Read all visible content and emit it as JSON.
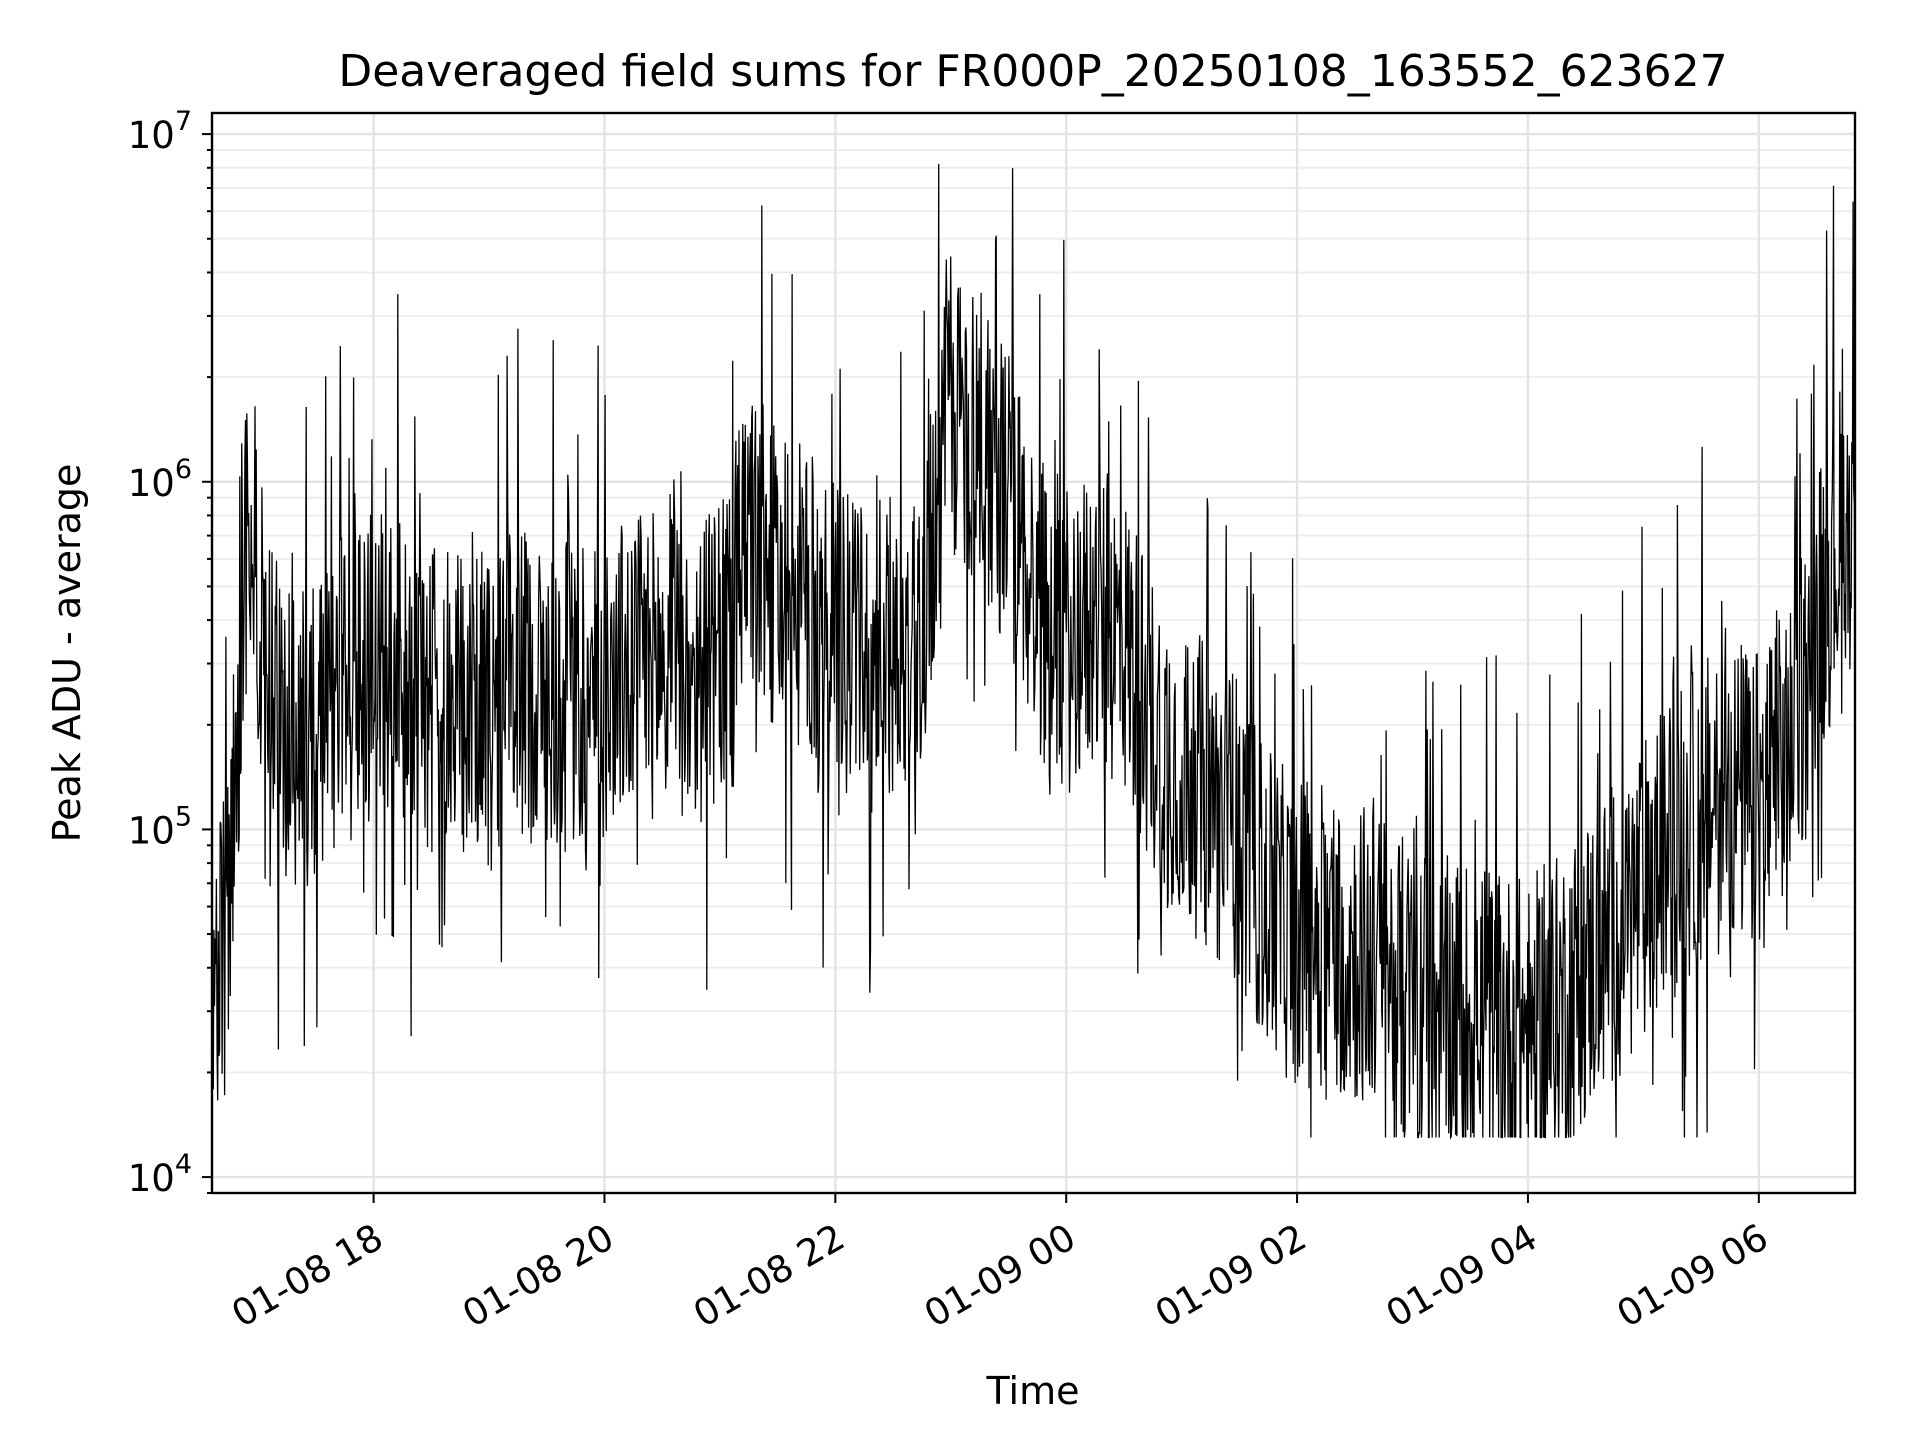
{
  "chart_data": {
    "type": "line",
    "title": "Deaveraged field sums for FR000P_20250108_163552_623627",
    "xlabel": "Time",
    "ylabel": "Peak ADU - average",
    "xlim": [
      "2025-01-08 16:36",
      "2025-01-09 06:50"
    ],
    "ylim": [
      9000,
      11500000
    ],
    "yscale": "log",
    "grid": true,
    "x_ticks": [
      "01-08 18",
      "01-08 20",
      "01-08 22",
      "01-09 00",
      "01-09 02",
      "01-09 04",
      "01-09 06"
    ],
    "y_ticks": [
      {
        "base": "10",
        "exp": "4"
      },
      {
        "base": "10",
        "exp": "5"
      },
      {
        "base": "10",
        "exp": "6"
      },
      {
        "base": "10",
        "exp": "7"
      }
    ],
    "series": [
      {
        "color": "#000000",
        "x": [
          "2025-01-08 16:36",
          "2025-01-08 16:45",
          "2025-01-08 16:55",
          "2025-01-08 17:05",
          "2025-01-08 17:15",
          "2025-01-08 17:25",
          "2025-01-08 17:35",
          "2025-01-08 17:45",
          "2025-01-08 18:00",
          "2025-01-08 18:15",
          "2025-01-08 18:30",
          "2025-01-08 18:45",
          "2025-01-08 19:00",
          "2025-01-08 19:15",
          "2025-01-08 19:30",
          "2025-01-08 19:45",
          "2025-01-08 20:00",
          "2025-01-08 20:15",
          "2025-01-08 20:30",
          "2025-01-08 20:45",
          "2025-01-08 21:00",
          "2025-01-08 21:15",
          "2025-01-08 21:30",
          "2025-01-08 21:45",
          "2025-01-08 22:00",
          "2025-01-08 22:15",
          "2025-01-08 22:30",
          "2025-01-08 22:45",
          "2025-01-08 23:00",
          "2025-01-08 23:15",
          "2025-01-08 23:30",
          "2025-01-08 23:45",
          "2025-01-09 00:00",
          "2025-01-09 00:15",
          "2025-01-09 00:30",
          "2025-01-09 00:45",
          "2025-01-09 01:00",
          "2025-01-09 01:15",
          "2025-01-09 01:30",
          "2025-01-09 01:45",
          "2025-01-09 02:00",
          "2025-01-09 02:15",
          "2025-01-09 02:30",
          "2025-01-09 02:45",
          "2025-01-09 03:00",
          "2025-01-09 03:15",
          "2025-01-09 03:30",
          "2025-01-09 03:45",
          "2025-01-09 04:00",
          "2025-01-09 04:15",
          "2025-01-09 04:30",
          "2025-01-09 04:45",
          "2025-01-09 05:00",
          "2025-01-09 05:15",
          "2025-01-09 05:30",
          "2025-01-09 05:45",
          "2025-01-09 06:00",
          "2025-01-09 06:15",
          "2025-01-09 06:30",
          "2025-01-09 06:45"
        ],
        "y": [
          25000,
          60000,
          900000,
          250000,
          200000,
          180000,
          220000,
          250000,
          300000,
          280000,
          230000,
          220000,
          240000,
          260000,
          250000,
          220000,
          260000,
          300000,
          300000,
          280000,
          300000,
          700000,
          500000,
          450000,
          350000,
          300000,
          350000,
          400000,
          1700000,
          1300000,
          900000,
          450000,
          350000,
          400000,
          350000,
          200000,
          150000,
          120000,
          100000,
          60000,
          50000,
          50000,
          45000,
          40000,
          32000,
          30000,
          30000,
          28000,
          26000,
          30000,
          40000,
          50000,
          65000,
          90000,
          110000,
          130000,
          120000,
          160000,
          400000,
          800000
        ]
      }
    ]
  }
}
